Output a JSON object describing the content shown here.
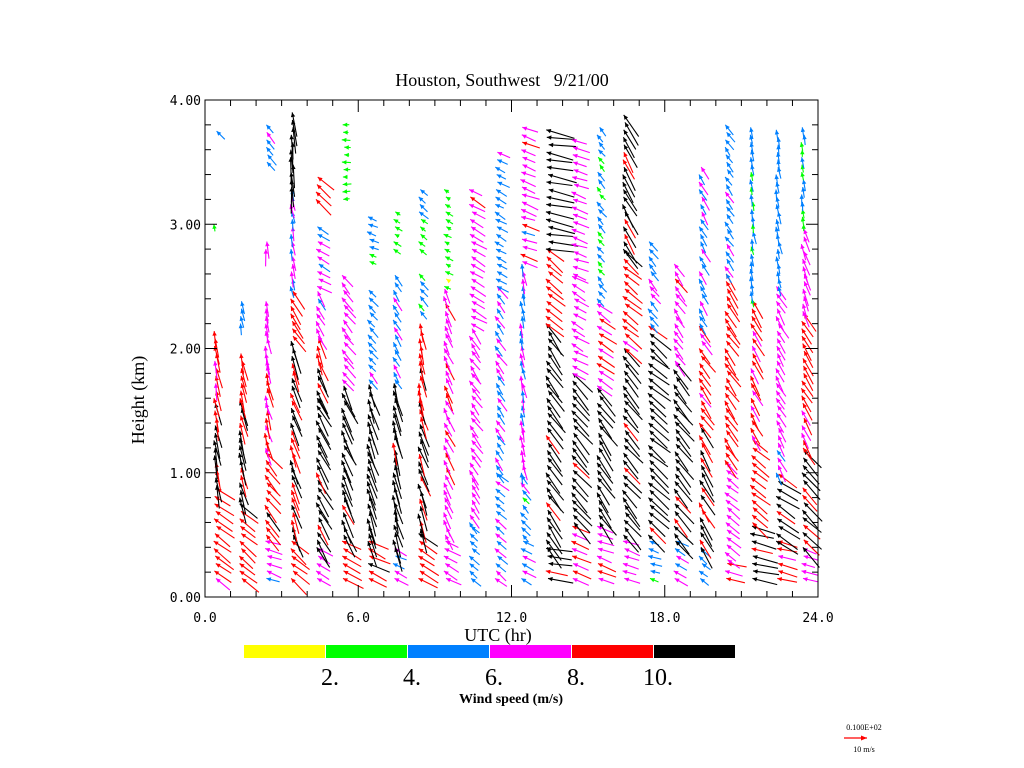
{
  "chart_data": {
    "type": "vector-profile",
    "title": "Houston, Southwest   9/21/00",
    "xlabel": "UTC (hr)",
    "ylabel": "Height (km)",
    "xlim": [
      0,
      24
    ],
    "ylim": [
      0,
      4
    ],
    "xticks": [
      "0.0",
      "6.0",
      "12.0",
      "18.0",
      "24.0"
    ],
    "xtick_values": [
      0,
      6,
      12,
      18,
      24
    ],
    "yticks": [
      "0.00",
      "1.00",
      "2.00",
      "3.00",
      "4.00"
    ],
    "ytick_values": [
      0,
      1,
      2,
      3,
      4
    ],
    "x_minor_step": 1,
    "y_minor_step": 0.2,
    "level_step_km": 0.06,
    "colorbar": {
      "title": "Wind speed (m/s)",
      "bins": [
        {
          "min": 0,
          "max": 2,
          "color": "#ffff00"
        },
        {
          "min": 2,
          "max": 4,
          "color": "#00ff00"
        },
        {
          "min": 4,
          "max": 6,
          "color": "#0080ff"
        },
        {
          "min": 6,
          "max": 8,
          "color": "#ff00ff"
        },
        {
          "min": 8,
          "max": 10,
          "color": "#ff0000"
        },
        {
          "min": 10,
          "max": 99,
          "color": "#000000"
        }
      ],
      "labels": [
        "2.",
        "4.",
        "6.",
        "8.",
        "10."
      ]
    },
    "reference_vector": {
      "header": "0.100E+02",
      "label": "10 m/s",
      "speed": 10,
      "color": "#ff0000"
    },
    "columns_note": "layers: [bottom_km, top_km, speed_m_s, vector_direction_deg (0=east,90=north)]",
    "columns": [
      {
        "t": 0.4,
        "layers": [
          [
            0.15,
            0.9,
            9,
            145
          ],
          [
            0.9,
            1.6,
            10.5,
            100
          ],
          [
            1.6,
            2.15,
            8.5,
            100
          ],
          [
            3.0,
            3.05,
            3,
            95
          ],
          [
            3.75,
            3.8,
            5,
            135
          ]
        ]
      },
      {
        "t": 1.4,
        "layers": [
          [
            0.15,
            0.8,
            9,
            140
          ],
          [
            0.8,
            1.6,
            10.5,
            105
          ],
          [
            1.6,
            2.0,
            8.5,
            100
          ],
          [
            2.2,
            2.4,
            5,
            100
          ]
        ]
      },
      {
        "t": 2.4,
        "layers": [
          [
            0.15,
            0.5,
            7,
            160
          ],
          [
            0.5,
            1.2,
            9,
            130
          ],
          [
            1.2,
            1.9,
            8.5,
            105
          ],
          [
            1.9,
            2.4,
            7,
            100
          ],
          [
            2.8,
            2.9,
            8,
            95
          ],
          [
            3.5,
            3.8,
            5,
            130
          ]
        ]
      },
      {
        "t": 3.4,
        "layers": [
          [
            0.15,
            0.5,
            9,
            140
          ],
          [
            0.5,
            2.1,
            10.5,
            110
          ],
          [
            2.1,
            2.5,
            9,
            125
          ],
          [
            2.5,
            3.3,
            6,
            100
          ],
          [
            3.3,
            3.9,
            11,
            95
          ]
        ]
      },
      {
        "t": 4.4,
        "layers": [
          [
            0.15,
            0.4,
            7,
            150
          ],
          [
            0.4,
            1.6,
            11,
            120
          ],
          [
            1.6,
            2.1,
            10.5,
            110
          ],
          [
            2.1,
            2.5,
            7,
            120
          ],
          [
            2.5,
            3.0,
            6,
            150
          ],
          [
            3.2,
            3.4,
            9,
            140
          ]
        ]
      },
      {
        "t": 5.4,
        "layers": [
          [
            0.15,
            0.5,
            9,
            150
          ],
          [
            0.5,
            1.75,
            11,
            115
          ],
          [
            1.75,
            2.6,
            7,
            130
          ],
          [
            3.2,
            3.8,
            3,
            180
          ]
        ]
      },
      {
        "t": 6.4,
        "layers": [
          [
            0.15,
            0.45,
            9,
            155
          ],
          [
            0.45,
            1.75,
            11,
            110
          ],
          [
            1.75,
            2.5,
            5,
            130
          ],
          [
            2.7,
            3.1,
            4,
            160
          ]
        ]
      },
      {
        "t": 7.4,
        "layers": [
          [
            0.15,
            0.4,
            6,
            155
          ],
          [
            0.4,
            1.75,
            11,
            105
          ],
          [
            1.75,
            2.6,
            6,
            120
          ],
          [
            2.8,
            3.1,
            3,
            150
          ]
        ]
      },
      {
        "t": 8.4,
        "layers": [
          [
            0.15,
            0.55,
            9,
            150
          ],
          [
            0.55,
            1.6,
            10.5,
            110
          ],
          [
            1.6,
            2.2,
            9,
            100
          ],
          [
            2.3,
            2.65,
            5,
            130
          ],
          [
            2.8,
            3.3,
            4,
            140
          ]
        ]
      },
      {
        "t": 9.4,
        "layers": [
          [
            0.15,
            0.5,
            7,
            150
          ],
          [
            0.5,
            2.5,
            7.5,
            115
          ],
          [
            2.5,
            3.3,
            3,
            150
          ]
        ]
      },
      {
        "t": 10.4,
        "layers": [
          [
            0.15,
            0.6,
            5,
            140
          ],
          [
            0.6,
            2.2,
            7,
            125
          ],
          [
            2.2,
            3.3,
            7,
            150
          ]
        ]
      },
      {
        "t": 11.4,
        "layers": [
          [
            0.15,
            1.0,
            6,
            140
          ],
          [
            1.0,
            2.5,
            6,
            125
          ],
          [
            2.5,
            3.6,
            5,
            150
          ]
        ]
      },
      {
        "t": 12.4,
        "layers": [
          [
            0.15,
            0.5,
            6,
            150
          ],
          [
            0.5,
            1.0,
            5,
            130
          ],
          [
            1.0,
            2.7,
            6,
            100
          ],
          [
            2.7,
            3.8,
            7,
            160
          ]
        ]
      },
      {
        "t": 13.4,
        "layers": [
          [
            0.15,
            0.4,
            10.5,
            170
          ],
          [
            0.4,
            2.2,
            11,
            125
          ],
          [
            2.2,
            2.8,
            9,
            140
          ],
          [
            2.8,
            3.8,
            12,
            170
          ]
        ]
      },
      {
        "t": 14.4,
        "layers": [
          [
            0.15,
            0.6,
            8,
            160
          ],
          [
            0.6,
            1.8,
            11,
            130
          ],
          [
            1.8,
            2.6,
            7,
            150
          ],
          [
            2.6,
            3.7,
            7,
            160
          ]
        ]
      },
      {
        "t": 15.4,
        "layers": [
          [
            0.15,
            0.6,
            8,
            160
          ],
          [
            0.6,
            1.7,
            11,
            125
          ],
          [
            1.7,
            2.4,
            8,
            145
          ],
          [
            2.4,
            3.8,
            4,
            130
          ]
        ]
      },
      {
        "t": 16.4,
        "layers": [
          [
            0.15,
            0.5,
            7,
            160
          ],
          [
            0.5,
            2.0,
            11,
            130
          ],
          [
            2.0,
            2.8,
            9,
            140
          ],
          [
            2.8,
            3.9,
            10.5,
            120
          ]
        ]
      },
      {
        "t": 17.4,
        "layers": [
          [
            0.15,
            0.5,
            5,
            160
          ],
          [
            0.5,
            2.2,
            11,
            140
          ],
          [
            2.2,
            2.9,
            6,
            130
          ]
        ]
      },
      {
        "t": 18.4,
        "layers": [
          [
            0.15,
            0.45,
            6,
            150
          ],
          [
            0.45,
            1.9,
            11,
            130
          ],
          [
            1.9,
            2.7,
            7,
            125
          ]
        ]
      },
      {
        "t": 19.4,
        "layers": [
          [
            0.15,
            0.4,
            5,
            140
          ],
          [
            0.4,
            1.4,
            10.5,
            120
          ],
          [
            1.4,
            2.2,
            8.5,
            125
          ],
          [
            2.2,
            3.5,
            6,
            120
          ]
        ]
      },
      {
        "t": 20.4,
        "layers": [
          [
            0.15,
            0.3,
            8,
            170
          ],
          [
            0.3,
            1.1,
            7,
            140
          ],
          [
            1.1,
            2.6,
            9,
            125
          ],
          [
            2.6,
            3.8,
            5,
            125
          ]
        ]
      },
      {
        "t": 21.4,
        "layers": [
          [
            0.15,
            0.6,
            10.5,
            165
          ],
          [
            0.6,
            1.3,
            9,
            140
          ],
          [
            1.3,
            2.4,
            8.5,
            120
          ],
          [
            2.4,
            3.8,
            4.5,
            100
          ]
        ]
      },
      {
        "t": 22.4,
        "layers": [
          [
            0.15,
            0.45,
            8,
            165
          ],
          [
            0.45,
            1.0,
            10.5,
            145
          ],
          [
            1.0,
            2.5,
            7,
            120
          ],
          [
            2.5,
            3.8,
            5,
            100
          ]
        ]
      },
      {
        "t": 23.4,
        "layers": [
          [
            0.15,
            0.4,
            7,
            160
          ],
          [
            0.4,
            1.2,
            10.5,
            135
          ],
          [
            1.2,
            2.3,
            8.5,
            120
          ],
          [
            2.3,
            3.0,
            7,
            110
          ],
          [
            3.0,
            3.8,
            4,
            95
          ]
        ]
      }
    ]
  }
}
